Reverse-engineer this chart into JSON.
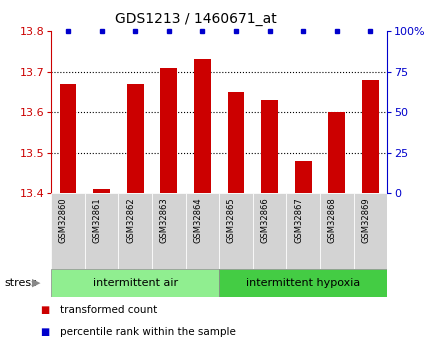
{
  "title": "GDS1213 / 1460671_at",
  "samples": [
    "GSM32860",
    "GSM32861",
    "GSM32862",
    "GSM32863",
    "GSM32864",
    "GSM32865",
    "GSM32866",
    "GSM32867",
    "GSM32868",
    "GSM32869"
  ],
  "transformed_count": [
    13.67,
    13.41,
    13.67,
    13.71,
    13.73,
    13.65,
    13.63,
    13.48,
    13.6,
    13.68
  ],
  "percentile_rank": [
    100,
    100,
    100,
    100,
    100,
    100,
    100,
    100,
    100,
    100
  ],
  "ylim_left": [
    13.4,
    13.8
  ],
  "ylim_right": [
    0,
    100
  ],
  "yticks_left": [
    13.4,
    13.5,
    13.6,
    13.7,
    13.8
  ],
  "yticks_right": [
    0,
    25,
    50,
    75,
    100
  ],
  "ytick_labels_right": [
    "0",
    "25",
    "50",
    "75",
    "100%"
  ],
  "bar_color": "#cc0000",
  "dot_color": "#0000cc",
  "groups": [
    {
      "label": "intermittent air",
      "color": "#90ee90",
      "indices": [
        0,
        1,
        2,
        3,
        4
      ]
    },
    {
      "label": "intermittent hypoxia",
      "color": "#44cc44",
      "indices": [
        5,
        6,
        7,
        8,
        9
      ]
    }
  ],
  "stress_label": "stress",
  "legend_items": [
    {
      "label": "transformed count",
      "color": "#cc0000"
    },
    {
      "label": "percentile rank within the sample",
      "color": "#0000cc"
    }
  ],
  "background_color": "#ffffff",
  "tick_area_color": "#d3d3d3",
  "grid_lines": [
    13.5,
    13.6,
    13.7
  ],
  "bar_width": 0.5
}
